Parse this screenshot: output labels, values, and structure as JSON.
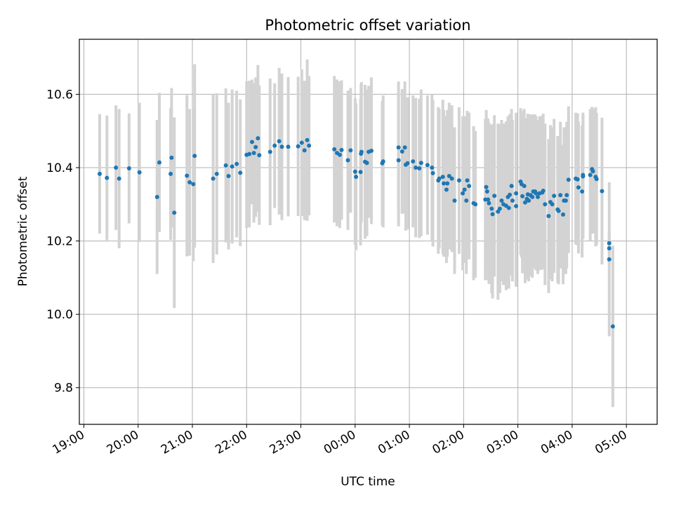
{
  "chart_data": {
    "type": "scatter",
    "title": "Photometric offset variation",
    "xlabel": "UTC time",
    "ylabel": "Photometric offset",
    "x_unit": "minutes after 19:00 UTC",
    "xlim": [
      -5,
      634
    ],
    "ylim": [
      9.7,
      10.75
    ],
    "grid": true,
    "x_ticks": [
      {
        "value": 0,
        "label": "19:00"
      },
      {
        "value": 60,
        "label": "20:00"
      },
      {
        "value": 120,
        "label": "21:00"
      },
      {
        "value": 180,
        "label": "22:00"
      },
      {
        "value": 240,
        "label": "23:00"
      },
      {
        "value": 300,
        "label": "00:00"
      },
      {
        "value": 360,
        "label": "01:00"
      },
      {
        "value": 420,
        "label": "02:00"
      },
      {
        "value": 480,
        "label": "03:00"
      },
      {
        "value": 540,
        "label": "04:00"
      },
      {
        "value": 600,
        "label": "05:00"
      }
    ],
    "y_ticks": [
      {
        "value": 9.8,
        "label": "9.8"
      },
      {
        "value": 10.0,
        "label": "10.0"
      },
      {
        "value": 10.2,
        "label": "10.2"
      },
      {
        "value": 10.4,
        "label": "10.4"
      },
      {
        "value": 10.6,
        "label": "10.6"
      }
    ],
    "marker_color": "#1f77b4",
    "errorbar_color": "#d3d3d3",
    "series": [
      {
        "name": "offset",
        "points": [
          {
            "x": 17.5,
            "y": 10.383,
            "err": 0.163
          },
          {
            "x": 25.5,
            "y": 10.372,
            "err": 0.17
          },
          {
            "x": 35.5,
            "y": 10.4,
            "err": 0.17
          },
          {
            "x": 39,
            "y": 10.37,
            "err": 0.19
          },
          {
            "x": 50,
            "y": 10.398,
            "err": 0.15
          },
          {
            "x": 61.5,
            "y": 10.387,
            "err": 0.19
          },
          {
            "x": 81,
            "y": 10.32,
            "err": 0.21
          },
          {
            "x": 83.5,
            "y": 10.414,
            "err": 0.19
          },
          {
            "x": 97,
            "y": 10.427,
            "err": 0.19
          },
          {
            "x": 96,
            "y": 10.383,
            "err": 0.18
          },
          {
            "x": 100,
            "y": 10.277,
            "err": 0.26
          },
          {
            "x": 114,
            "y": 10.378,
            "err": 0.22
          },
          {
            "x": 117,
            "y": 10.36,
            "err": 0.2
          },
          {
            "x": 121,
            "y": 10.355,
            "err": 0.21
          },
          {
            "x": 122.5,
            "y": 10.432,
            "err": 0.25
          },
          {
            "x": 143,
            "y": 10.37,
            "err": 0.23
          },
          {
            "x": 147,
            "y": 10.383,
            "err": 0.22
          },
          {
            "x": 157,
            "y": 10.406,
            "err": 0.21
          },
          {
            "x": 160,
            "y": 10.377,
            "err": 0.2
          },
          {
            "x": 164,
            "y": 10.403,
            "err": 0.21
          },
          {
            "x": 169,
            "y": 10.41,
            "err": 0.2
          },
          {
            "x": 173,
            "y": 10.386,
            "err": 0.2
          },
          {
            "x": 180,
            "y": 10.435,
            "err": 0.2
          },
          {
            "x": 183,
            "y": 10.437,
            "err": 0.2
          },
          {
            "x": 186,
            "y": 10.47,
            "err": 0.17
          },
          {
            "x": 188,
            "y": 10.44,
            "err": 0.19
          },
          {
            "x": 190,
            "y": 10.456,
            "err": 0.19
          },
          {
            "x": 192.5,
            "y": 10.48,
            "err": 0.2
          },
          {
            "x": 194,
            "y": 10.434,
            "err": 0.19
          },
          {
            "x": 206,
            "y": 10.443,
            "err": 0.2
          },
          {
            "x": 211,
            "y": 10.46,
            "err": 0.17
          },
          {
            "x": 216,
            "y": 10.472,
            "err": 0.2
          },
          {
            "x": 219,
            "y": 10.457,
            "err": 0.2
          },
          {
            "x": 226,
            "y": 10.457,
            "err": 0.19
          },
          {
            "x": 237,
            "y": 10.458,
            "err": 0.19
          },
          {
            "x": 241,
            "y": 10.468,
            "err": 0.2
          },
          {
            "x": 244,
            "y": 10.447,
            "err": 0.19
          },
          {
            "x": 247,
            "y": 10.475,
            "err": 0.22
          },
          {
            "x": 249,
            "y": 10.46,
            "err": 0.19
          },
          {
            "x": 277,
            "y": 10.45,
            "err": 0.2
          },
          {
            "x": 280,
            "y": 10.44,
            "err": 0.2
          },
          {
            "x": 283,
            "y": 10.435,
            "err": 0.2
          },
          {
            "x": 285,
            "y": 10.448,
            "err": 0.19
          },
          {
            "x": 292,
            "y": 10.42,
            "err": 0.19
          },
          {
            "x": 295,
            "y": 10.447,
            "err": 0.17
          },
          {
            "x": 300,
            "y": 10.389,
            "err": 0.2
          },
          {
            "x": 301,
            "y": 10.375,
            "err": 0.2
          },
          {
            "x": 306,
            "y": 10.388,
            "err": 0.2
          },
          {
            "x": 306.5,
            "y": 10.438,
            "err": 0.19
          },
          {
            "x": 307,
            "y": 10.443,
            "err": 0.19
          },
          {
            "x": 311,
            "y": 10.416,
            "err": 0.21
          },
          {
            "x": 313,
            "y": 10.413,
            "err": 0.2
          },
          {
            "x": 315,
            "y": 10.443,
            "err": 0.18
          },
          {
            "x": 318,
            "y": 10.446,
            "err": 0.2
          },
          {
            "x": 330,
            "y": 10.412,
            "err": 0.17
          },
          {
            "x": 331,
            "y": 10.417,
            "err": 0.18
          },
          {
            "x": 348,
            "y": 10.455,
            "err": 0.18
          },
          {
            "x": 348,
            "y": 10.42,
            "err": 0.18
          },
          {
            "x": 352,
            "y": 10.444,
            "err": 0.17
          },
          {
            "x": 355,
            "y": 10.455,
            "err": 0.18
          },
          {
            "x": 356,
            "y": 10.408,
            "err": 0.18
          },
          {
            "x": 358,
            "y": 10.412,
            "err": 0.18
          },
          {
            "x": 364,
            "y": 10.417,
            "err": 0.18
          },
          {
            "x": 367,
            "y": 10.4,
            "err": 0.19
          },
          {
            "x": 371,
            "y": 10.398,
            "err": 0.19
          },
          {
            "x": 373,
            "y": 10.413,
            "err": 0.2
          },
          {
            "x": 380,
            "y": 10.407,
            "err": 0.19
          },
          {
            "x": 385,
            "y": 10.4,
            "err": 0.2
          },
          {
            "x": 386,
            "y": 10.385,
            "err": 0.2
          },
          {
            "x": 392,
            "y": 10.365,
            "err": 0.2
          },
          {
            "x": 393,
            "y": 10.37,
            "err": 0.19
          },
          {
            "x": 397,
            "y": 10.375,
            "err": 0.21
          },
          {
            "x": 398,
            "y": 10.357,
            "err": 0.2
          },
          {
            "x": 401,
            "y": 10.34,
            "err": 0.2
          },
          {
            "x": 402,
            "y": 10.357,
            "err": 0.2
          },
          {
            "x": 404,
            "y": 10.377,
            "err": 0.2
          },
          {
            "x": 407,
            "y": 10.37,
            "err": 0.2
          },
          {
            "x": 410,
            "y": 10.31,
            "err": 0.2
          },
          {
            "x": 415,
            "y": 10.365,
            "err": 0.2
          },
          {
            "x": 419,
            "y": 10.33,
            "err": 0.21
          },
          {
            "x": 421,
            "y": 10.34,
            "err": 0.2
          },
          {
            "x": 423,
            "y": 10.31,
            "err": 0.2
          },
          {
            "x": 424,
            "y": 10.365,
            "err": 0.19
          },
          {
            "x": 426,
            "y": 10.35,
            "err": 0.2
          },
          {
            "x": 431,
            "y": 10.303,
            "err": 0.21
          },
          {
            "x": 433,
            "y": 10.3,
            "err": 0.2
          },
          {
            "x": 444,
            "y": 10.313,
            "err": 0.22
          },
          {
            "x": 445,
            "y": 10.347,
            "err": 0.21
          },
          {
            "x": 446,
            "y": 10.335,
            "err": 0.2
          },
          {
            "x": 447,
            "y": 10.313,
            "err": 0.22
          },
          {
            "x": 448,
            "y": 10.303,
            "err": 0.22
          },
          {
            "x": 451,
            "y": 10.288,
            "err": 0.23
          },
          {
            "x": 452,
            "y": 10.273,
            "err": 0.23
          },
          {
            "x": 454,
            "y": 10.323,
            "err": 0.22
          },
          {
            "x": 458,
            "y": 10.28,
            "err": 0.24
          },
          {
            "x": 460,
            "y": 10.288,
            "err": 0.23
          },
          {
            "x": 462,
            "y": 10.31,
            "err": 0.22
          },
          {
            "x": 464,
            "y": 10.3,
            "err": 0.22
          },
          {
            "x": 467,
            "y": 10.296,
            "err": 0.23
          },
          {
            "x": 469,
            "y": 10.32,
            "err": 0.22
          },
          {
            "x": 470,
            "y": 10.29,
            "err": 0.22
          },
          {
            "x": 471,
            "y": 10.326,
            "err": 0.22
          },
          {
            "x": 473,
            "y": 10.35,
            "err": 0.21
          },
          {
            "x": 474,
            "y": 10.31,
            "err": 0.22
          },
          {
            "x": 478,
            "y": 10.295,
            "err": 0.22
          },
          {
            "x": 478,
            "y": 10.33,
            "err": 0.22
          },
          {
            "x": 483,
            "y": 10.362,
            "err": 0.2
          },
          {
            "x": 484,
            "y": 10.355,
            "err": 0.2
          },
          {
            "x": 485,
            "y": 10.322,
            "err": 0.21
          },
          {
            "x": 487,
            "y": 10.35,
            "err": 0.21
          },
          {
            "x": 488,
            "y": 10.305,
            "err": 0.22
          },
          {
            "x": 490,
            "y": 10.315,
            "err": 0.22
          },
          {
            "x": 491,
            "y": 10.327,
            "err": 0.22
          },
          {
            "x": 492,
            "y": 10.31,
            "err": 0.22
          },
          {
            "x": 494,
            "y": 10.325,
            "err": 0.22
          },
          {
            "x": 496,
            "y": 10.32,
            "err": 0.22
          },
          {
            "x": 497,
            "y": 10.335,
            "err": 0.21
          },
          {
            "x": 499,
            "y": 10.335,
            "err": 0.21
          },
          {
            "x": 500,
            "y": 10.33,
            "err": 0.21
          },
          {
            "x": 502,
            "y": 10.32,
            "err": 0.21
          },
          {
            "x": 504,
            "y": 10.33,
            "err": 0.21
          },
          {
            "x": 507,
            "y": 10.332,
            "err": 0.21
          },
          {
            "x": 508,
            "y": 10.337,
            "err": 0.21
          },
          {
            "x": 510,
            "y": 10.3,
            "err": 0.22
          },
          {
            "x": 514,
            "y": 10.268,
            "err": 0.21
          },
          {
            "x": 516,
            "y": 10.306,
            "err": 0.21
          },
          {
            "x": 518,
            "y": 10.3,
            "err": 0.21
          },
          {
            "x": 520,
            "y": 10.323,
            "err": 0.21
          },
          {
            "x": 524,
            "y": 10.286,
            "err": 0.2
          },
          {
            "x": 525,
            "y": 10.282,
            "err": 0.2
          },
          {
            "x": 527,
            "y": 10.325,
            "err": 0.2
          },
          {
            "x": 530,
            "y": 10.272,
            "err": 0.19
          },
          {
            "x": 531,
            "y": 10.31,
            "err": 0.2
          },
          {
            "x": 533,
            "y": 10.31,
            "err": 0.2
          },
          {
            "x": 534,
            "y": 10.325,
            "err": 0.2
          },
          {
            "x": 536,
            "y": 10.367,
            "err": 0.2
          },
          {
            "x": 544,
            "y": 10.37,
            "err": 0.18
          },
          {
            "x": 546,
            "y": 10.368,
            "err": 0.18
          },
          {
            "x": 547,
            "y": 10.346,
            "err": 0.18
          },
          {
            "x": 551,
            "y": 10.335,
            "err": 0.18
          },
          {
            "x": 552,
            "y": 10.38,
            "err": 0.17
          },
          {
            "x": 552,
            "y": 10.376,
            "err": 0.17
          },
          {
            "x": 560,
            "y": 10.38,
            "err": 0.18
          },
          {
            "x": 562,
            "y": 10.396,
            "err": 0.17
          },
          {
            "x": 563,
            "y": 10.39,
            "err": 0.17
          },
          {
            "x": 566,
            "y": 10.375,
            "err": 0.19
          },
          {
            "x": 567,
            "y": 10.369,
            "err": 0.18
          },
          {
            "x": 573,
            "y": 10.336,
            "err": 0.2
          },
          {
            "x": 581,
            "y": 10.194,
            "err": 0.03
          },
          {
            "x": 581,
            "y": 10.18,
            "err": 0.04
          },
          {
            "x": 581,
            "y": 10.15,
            "err": 0.21
          },
          {
            "x": 585,
            "y": 9.967,
            "err": 0.22
          }
        ]
      }
    ]
  }
}
